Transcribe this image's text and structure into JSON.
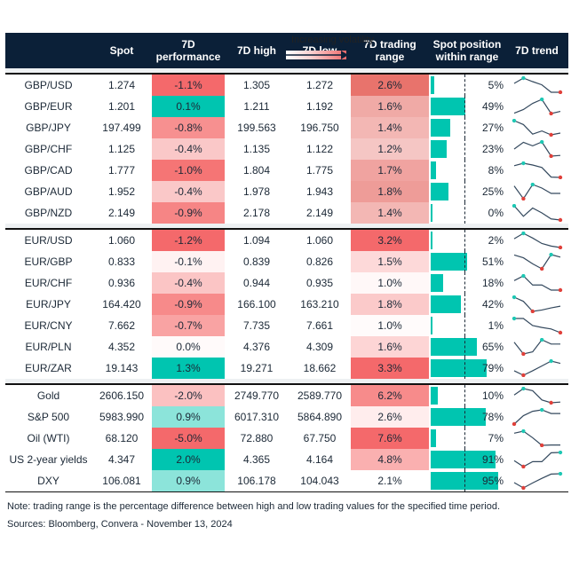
{
  "legend": {
    "label": "Increasing volatility",
    "gradient_colors": [
      "#ffffff",
      "#f06a6a"
    ]
  },
  "headers": {
    "name": "",
    "spot": "Spot",
    "perf": [
      "7D",
      "performance"
    ],
    "high": "7D high",
    "low": "7D low",
    "range": [
      "7D trading",
      "range"
    ],
    "position": [
      "Spot position",
      "within range"
    ],
    "trend": "7D trend"
  },
  "colors": {
    "header_bg": "#0b2038",
    "bar": "#00c5b0",
    "trend_line": "#34495e",
    "trend_max": "#1ec8b4",
    "trend_min": "#e0403a"
  },
  "groups": [
    [
      {
        "name": "GBP/USD",
        "spot": "1.274",
        "perf": "-1.1%",
        "perf_color": "#f4696b",
        "high": "1.305",
        "low": "1.272",
        "range": "2.6%",
        "range_color": "#e8736c",
        "position": 5,
        "position_label": "5%",
        "trend": [
          58,
          73,
          63,
          54,
          33,
          33
        ]
      },
      {
        "name": "GBP/EUR",
        "spot": "1.201",
        "perf": "0.1%",
        "perf_color": "#00c5b0",
        "high": "1.211",
        "low": "1.192",
        "range": "1.6%",
        "range_color": "#f0aaa6",
        "position": 49,
        "position_label": "49%",
        "trend": [
          63,
          73,
          90,
          101,
          62,
          68
        ]
      },
      {
        "name": "GBP/JPY",
        "spot": "197.499",
        "perf": "-0.8%",
        "perf_color": "#f79090",
        "high": "199.563",
        "low": "196.750",
        "range": "1.4%",
        "range_color": "#f3b7b4",
        "position": 27,
        "position_label": "27%",
        "trend": [
          80,
          69,
          42,
          51,
          40,
          45
        ]
      },
      {
        "name": "GBP/CHF",
        "spot": "1.125",
        "perf": "-0.4%",
        "perf_color": "#fac8c8",
        "high": "1.135",
        "low": "1.122",
        "range": "1.2%",
        "range_color": "#f5c6c4",
        "position": 23,
        "position_label": "23%",
        "trend": [
          38,
          57,
          47,
          58,
          18,
          20
        ]
      },
      {
        "name": "GBP/CAD",
        "spot": "1.777",
        "perf": "-1.0%",
        "perf_color": "#f57575",
        "high": "1.804",
        "low": "1.775",
        "range": "1.7%",
        "range_color": "#f0a3a0",
        "position": 8,
        "position_label": "8%",
        "trend": [
          78,
          85,
          80,
          73,
          46,
          45
        ]
      },
      {
        "name": "GBP/AUD",
        "spot": "1.952",
        "perf": "-0.4%",
        "perf_color": "#fac8c8",
        "high": "1.978",
        "low": "1.943",
        "range": "1.8%",
        "range_color": "#ee9c98",
        "position": 25,
        "position_label": "25%",
        "trend": [
          60,
          24,
          64,
          54,
          39,
          39
        ]
      },
      {
        "name": "GBP/NZD",
        "spot": "2.149",
        "perf": "-0.9%",
        "perf_color": "#f68585",
        "high": "2.178",
        "low": "2.149",
        "range": "1.4%",
        "range_color": "#f3b7b4",
        "position": 0,
        "position_label": "0%",
        "trend": [
          61,
          33,
          55,
          42,
          26,
          23
        ]
      }
    ],
    [
      {
        "name": "EUR/USD",
        "spot": "1.060",
        "perf": "-1.2%",
        "perf_color": "#f4696b",
        "high": "1.094",
        "low": "1.060",
        "range": "3.2%",
        "range_color": "#f4696b",
        "position": 2,
        "position_label": "2%",
        "trend": [
          58,
          73,
          60,
          45,
          38,
          34
        ]
      },
      {
        "name": "EUR/GBP",
        "spot": "0.833",
        "perf": "-0.1%",
        "perf_color": "#fff2f2",
        "high": "0.839",
        "low": "0.826",
        "range": "1.5%",
        "range_color": "#fdd9d9",
        "position": 51,
        "position_label": "51%",
        "trend": [
          101,
          93,
          76,
          62,
          102,
          95
        ]
      },
      {
        "name": "EUR/CHF",
        "spot": "0.936",
        "perf": "-0.4%",
        "perf_color": "#fbc5c5",
        "high": "0.944",
        "low": "0.935",
        "range": "1.0%",
        "range_color": "#fff8f8",
        "position": 18,
        "position_label": "18%",
        "trend": [
          66,
          79,
          54,
          54,
          40,
          40
        ]
      },
      {
        "name": "EUR/JPY",
        "spot": "164.420",
        "perf": "-0.9%",
        "perf_color": "#f78a8a",
        "high": "166.100",
        "low": "163.210",
        "range": "1.8%",
        "range_color": "#fbcaca",
        "position": 42,
        "position_label": "42%",
        "trend": [
          58,
          46,
          17,
          21,
          27,
          32
        ]
      },
      {
        "name": "EUR/CNY",
        "spot": "7.662",
        "perf": "-0.7%",
        "perf_color": "#f9a3a3",
        "high": "7.735",
        "low": "7.661",
        "range": "1.0%",
        "range_color": "#fffbfb",
        "position": 1,
        "position_label": "1%",
        "trend": [
          84,
          84,
          65,
          60,
          56,
          46
        ]
      },
      {
        "name": "EUR/PLN",
        "spot": "4.352",
        "perf": "0.0%",
        "perf_color": "#fffafa",
        "high": "4.376",
        "low": "4.309",
        "range": "1.6%",
        "range_color": "#fdd5d5",
        "position": 65,
        "position_label": "65%",
        "trend": [
          57,
          24,
          30,
          64,
          52,
          52
        ]
      },
      {
        "name": "EUR/ZAR",
        "spot": "19.143",
        "perf": "1.3%",
        "perf_color": "#00c5b0",
        "high": "19.271",
        "low": "18.662",
        "range": "3.3%",
        "range_color": "#f4696b",
        "position": 79,
        "position_label": "79%",
        "trend": [
          35,
          23,
          35,
          48,
          61,
          55
        ]
      }
    ],
    [
      {
        "name": "Gold",
        "spot": "2606.150",
        "perf": "-2.0%",
        "perf_color": "#fbc1c1",
        "high": "2749.770",
        "low": "2589.770",
        "range": "6.2%",
        "range_color": "#f78b8b",
        "position": 10,
        "position_label": "10%",
        "trend": [
          40,
          58,
          52,
          26,
          18,
          20
        ]
      },
      {
        "name": "S&P 500",
        "spot": "5983.990",
        "perf": "0.9%",
        "perf_color": "#8ce4da",
        "high": "6017.310",
        "low": "5864.890",
        "range": "2.6%",
        "range_color": "#ffeded",
        "position": 78,
        "position_label": "78%",
        "trend": [
          47,
          70,
          82,
          86,
          76,
          76
        ]
      },
      {
        "name": "Oil (WTI)",
        "spot": "68.120",
        "perf": "-5.0%",
        "perf_color": "#f4696b",
        "high": "72.880",
        "low": "67.750",
        "range": "7.6%",
        "range_color": "#f4696b",
        "position": 7,
        "position_label": "7%",
        "trend": [
          58,
          64,
          45,
          23,
          24,
          24
        ]
      },
      {
        "name": "US 2-year yields",
        "spot": "4.347",
        "perf": "2.0%",
        "perf_color": "#00c5b0",
        "high": "4.365",
        "low": "4.164",
        "range": "4.8%",
        "range_color": "#fab0b0",
        "position": 91,
        "position_label": "91%",
        "trend": [
          20,
          3,
          17,
          17,
          42,
          43
        ]
      },
      {
        "name": "DXY",
        "spot": "106.081",
        "perf": "0.9%",
        "perf_color": "#8ce4da",
        "high": "106.178",
        "low": "104.043",
        "range": "2.1%",
        "range_color": "#ffffff",
        "position": 95,
        "position_label": "95%",
        "trend": [
          46,
          31,
          45,
          58,
          70,
          71
        ]
      }
    ]
  ],
  "notes": {
    "note": "Note: trading range is the percentage difference between high and low trading values for the specified time period.",
    "sources": "Sources: Bloomberg, Convera - November 13, 2024"
  }
}
